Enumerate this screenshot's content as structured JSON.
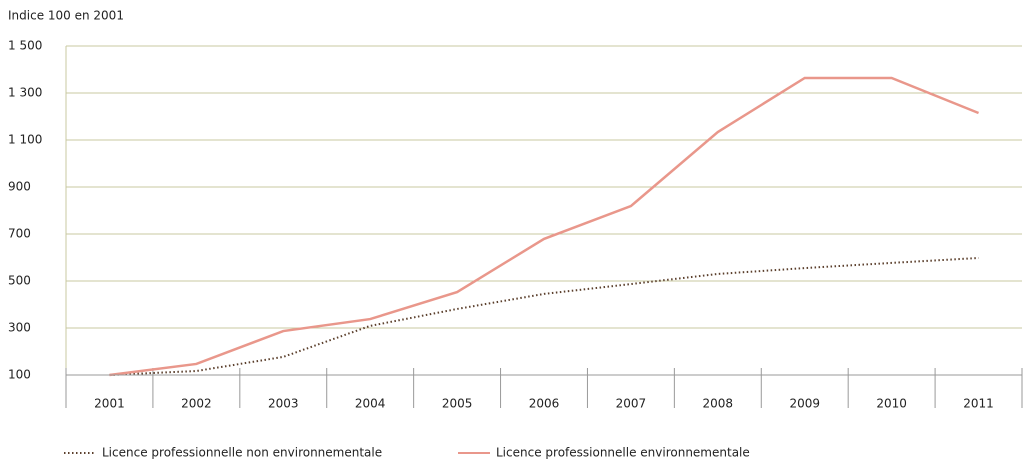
{
  "chart_data": {
    "type": "line",
    "title": "Indice 100 en 2001",
    "categories": [
      "2001",
      "2002",
      "2003",
      "2004",
      "2005",
      "2006",
      "2007",
      "2008",
      "2009",
      "2010",
      "2011"
    ],
    "series": [
      {
        "name": "Licence professionnelle non environnementale",
        "color": "#5b3f2c",
        "style": "dotted",
        "values": [
          100,
          117,
          177,
          309,
          381,
          445,
          487,
          530,
          555,
          577,
          598
        ]
      },
      {
        "name": "Licence professionnelle environnementale",
        "color": "#e9978b",
        "style": "solid",
        "values": [
          100,
          147,
          287,
          338,
          453,
          679,
          819,
          1134,
          1364,
          1364,
          1215
        ]
      }
    ],
    "ylim": [
      100,
      1500
    ],
    "yticks": [
      100,
      300,
      500,
      700,
      900,
      {
        "value": 1100,
        "label": "1 100"
      },
      {
        "value": 1300,
        "label": "1 300"
      },
      {
        "value": 1500,
        "label": "1 500"
      }
    ],
    "grid": true,
    "legend": "bottom"
  }
}
